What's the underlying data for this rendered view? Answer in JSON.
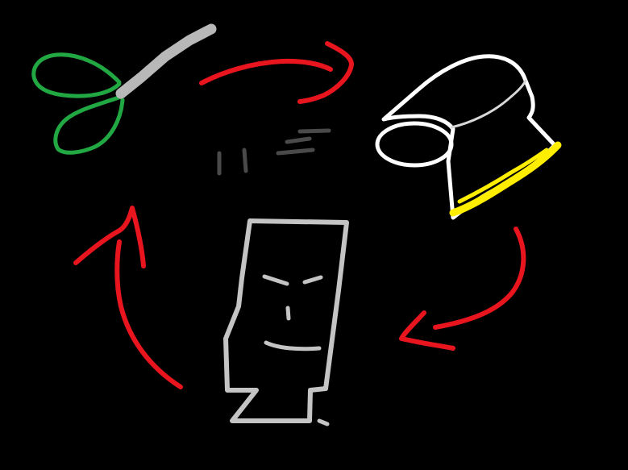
{
  "scene": {
    "background": "#000000",
    "elements": [
      {
        "name": "scissors-icon",
        "color": "#22a843",
        "blade_color": "#b8b8b8"
      },
      {
        "name": "toilet-paper-roll-icon",
        "color": "#ffffff",
        "edge_color": "#ffee00"
      },
      {
        "name": "paper-character-icon",
        "color": "#c4c4c4"
      },
      {
        "name": "cycle-arrow-top",
        "color": "#e8151e"
      },
      {
        "name": "cycle-arrow-right",
        "color": "#e8151e"
      },
      {
        "name": "cycle-arrow-left",
        "color": "#e8151e"
      },
      {
        "name": "center-scribble-marks",
        "color": "#4a4a4a"
      }
    ]
  }
}
